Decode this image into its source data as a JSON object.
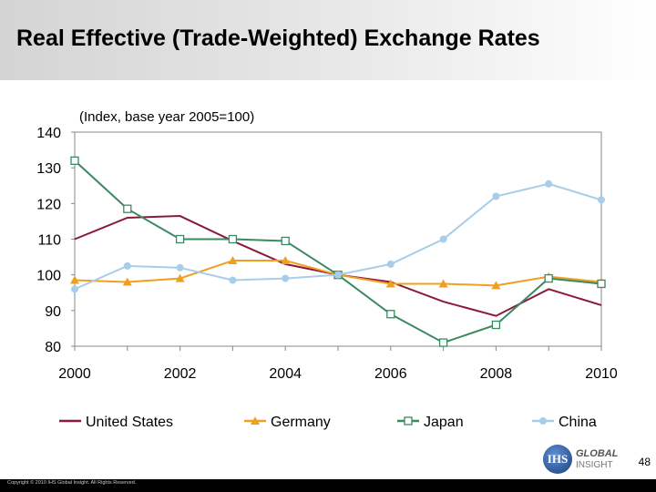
{
  "slide": {
    "title": "Real Effective (Trade-Weighted) Exchange Rates",
    "page_number": "48",
    "copyright": "Copyright © 2010 IHS Global Insight. All Rights Reserved.",
    "logo": {
      "mark": "IHS",
      "line1": "GLOBAL",
      "line2": "INSIGHT"
    }
  },
  "chart_data": {
    "type": "line",
    "subtitle": "(Index, base year 2005=100)",
    "x": [
      2000,
      2001,
      2002,
      2003,
      2004,
      2005,
      2006,
      2007,
      2008,
      2009,
      2010
    ],
    "xticks": [
      2000,
      2002,
      2004,
      2006,
      2008,
      2010
    ],
    "xlim": [
      2000,
      2010
    ],
    "ylim": [
      80,
      140
    ],
    "yticks": [
      80,
      90,
      100,
      110,
      120,
      130,
      140
    ],
    "grid": false,
    "legend_position": "bottom",
    "series": [
      {
        "name": "United States",
        "color": "#8b1a3a",
        "marker": "none",
        "values": [
          110,
          116,
          116.5,
          109.5,
          103,
          100,
          98,
          92.5,
          88.5,
          96,
          91.5
        ]
      },
      {
        "name": "Germany",
        "color": "#f0a020",
        "marker": "triangle",
        "values": [
          98.5,
          98,
          99,
          104,
          104,
          100,
          97.5,
          97.5,
          97,
          99.5,
          98
        ]
      },
      {
        "name": "Japan",
        "color": "#3a8a60",
        "marker": "square",
        "values": [
          132,
          118.5,
          110,
          110,
          109.5,
          100,
          89,
          81,
          86,
          99,
          97.5
        ]
      },
      {
        "name": "China",
        "color": "#a8cde8",
        "marker": "circle",
        "values": [
          96,
          102.5,
          102,
          98.5,
          99,
          100,
          103,
          110,
          122,
          125.5,
          121
        ]
      }
    ]
  }
}
